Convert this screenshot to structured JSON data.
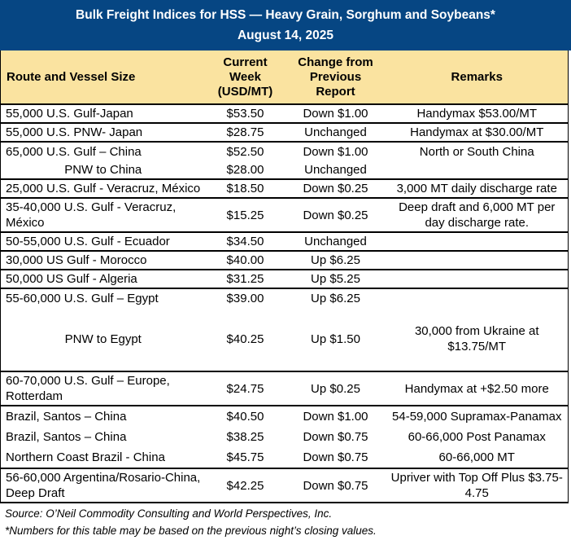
{
  "colors": {
    "header_blue": "#064683",
    "header_cream": "#FAE3A0",
    "border": "#000000"
  },
  "title_band": {
    "title": "Bulk Freight Indices for HSS — Heavy Grain, Sorghum and Soybeans*",
    "date": "August 14, 2025"
  },
  "table": {
    "columns": {
      "route": "Route and Vessel Size",
      "current": "Current\nWeek\n(USD/MT)",
      "change": "Change from\nPrevious\nReport",
      "remarks": "Remarks"
    },
    "groups": [
      {
        "rows": [
          {
            "route": "55,000 U.S. Gulf-Japan",
            "current": "$53.50",
            "change": "Down $1.00",
            "remarks": "Handymax  $53.00/MT"
          }
        ]
      },
      {
        "rows": [
          {
            "route": "55,000 U.S. PNW- Japan",
            "current": "$28.75",
            "change": "Unchanged",
            "remarks": "Handymax at $30.00/MT"
          }
        ]
      },
      {
        "rows": [
          {
            "route": "65,000 U.S. Gulf – China",
            "current": "$52.50",
            "change": "Down $1.00",
            "remarks": "North or South China"
          },
          {
            "route": "PNW to China",
            "current": "$28.00",
            "change": "Unchanged",
            "remarks": ""
          }
        ]
      },
      {
        "rows": [
          {
            "route": "25,000 U.S. Gulf - Veracruz, México",
            "current": "$18.50",
            "change": "Down $0.25",
            "remarks": "3,000 MT daily discharge rate"
          }
        ]
      },
      {
        "rows": [
          {
            "route": "35-40,000 U.S. Gulf - Veracruz, México",
            "current": "$15.25",
            "change": "Down $0.25",
            "remarks": "Deep draft and 6,000 MT per day discharge rate."
          }
        ]
      },
      {
        "rows": [
          {
            "route": "50-55,000 U.S. Gulf - Ecuador",
            "current": "$34.50",
            "change": "Unchanged",
            "remarks": ""
          }
        ]
      },
      {
        "rows": [
          {
            "route": "30,000 US Gulf - Morocco",
            "current": "$40.00",
            "change": "Up $6.25",
            "remarks": ""
          }
        ]
      },
      {
        "rows": [
          {
            "route": "50,000 US Gulf - Algeria",
            "current": "$31.25",
            "change": "Up $5.25",
            "remarks": ""
          }
        ]
      },
      {
        "rows": [
          {
            "route": "55-60,000 U.S. Gulf – Egypt",
            "current": "$39.00",
            "change": "Up $6.25",
            "remarks": ""
          },
          {
            "route": "PNW to Egypt",
            "current": "$40.25",
            "change": "Up $1.50",
            "remarks": "30,000 from Ukraine at $13.75/MT"
          }
        ]
      },
      {
        "rows": [
          {
            "route": "60-70,000 U.S. Gulf – Europe, Rotterdam",
            "current": "$24.75",
            "change": "Up $0.25",
            "remarks": "Handymax at +$2.50 more"
          }
        ]
      },
      {
        "rows": [
          {
            "route": "Brazil, Santos – China",
            "current": "$40.50",
            "change": "Down $1.00",
            "remarks": "54-59,000 Supramax-Panamax"
          },
          {
            "route": "Brazil, Santos – China",
            "current": "$38.25",
            "change": "Down $0.75",
            "remarks": "60-66,000  Post Panamax"
          },
          {
            "route": "Northern Coast Brazil - China",
            "current": "$45.75",
            "change": "Down $0.75",
            "remarks": "60-66,000 MT"
          }
        ]
      },
      {
        "rows": [
          {
            "route": "56-60,000 Argentina/Rosario-China, Deep Draft",
            "current": "$42.25",
            "change": "Down $0.75",
            "remarks": "Upriver with Top Off Plus $3.75-4.75"
          }
        ]
      }
    ]
  },
  "footer": {
    "source": "Source: O’Neil Commodity Consulting and World Perspectives, Inc.",
    "note": "*Numbers for this table may be based on the previous night’s closing values."
  }
}
